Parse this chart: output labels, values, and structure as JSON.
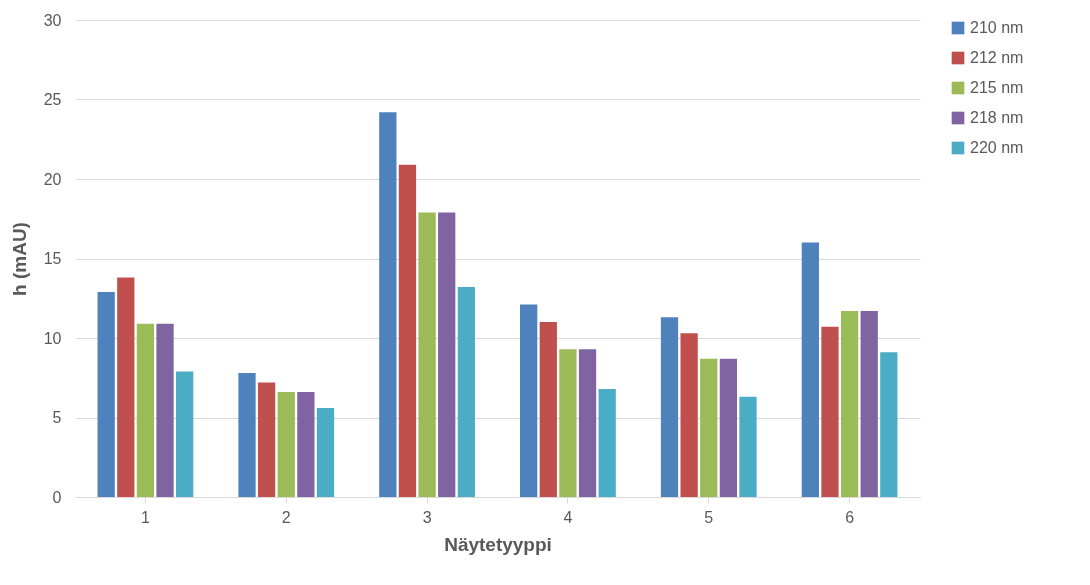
{
  "chart_data": {
    "type": "bar",
    "xlabel": "Näytetyyppi",
    "ylabel": "h (mAU)",
    "categories": [
      "1",
      "2",
      "3",
      "4",
      "5",
      "6"
    ],
    "series": [
      {
        "name": "210 nm",
        "color": "#4f81bd",
        "values": [
          12.9,
          7.8,
          24.2,
          12.1,
          11.3,
          16.0
        ]
      },
      {
        "name": "212 nm",
        "color": "#c0504d",
        "values": [
          13.8,
          7.2,
          20.9,
          11.0,
          10.3,
          10.7
        ]
      },
      {
        "name": "215 nm",
        "color": "#9bbb59",
        "values": [
          10.9,
          6.6,
          17.9,
          9.3,
          8.7,
          11.7
        ]
      },
      {
        "name": "218 nm",
        "color": "#8064a2",
        "values": [
          10.9,
          6.6,
          17.9,
          9.3,
          8.7,
          11.7
        ]
      },
      {
        "name": "220 nm",
        "color": "#4bacc6",
        "values": [
          7.9,
          5.6,
          13.2,
          6.8,
          6.3,
          9.1
        ]
      }
    ],
    "ylim": [
      0,
      30
    ],
    "yticks": [
      0,
      5,
      10,
      15,
      20,
      25,
      30
    ],
    "grid": "y",
    "legend": "right"
  }
}
